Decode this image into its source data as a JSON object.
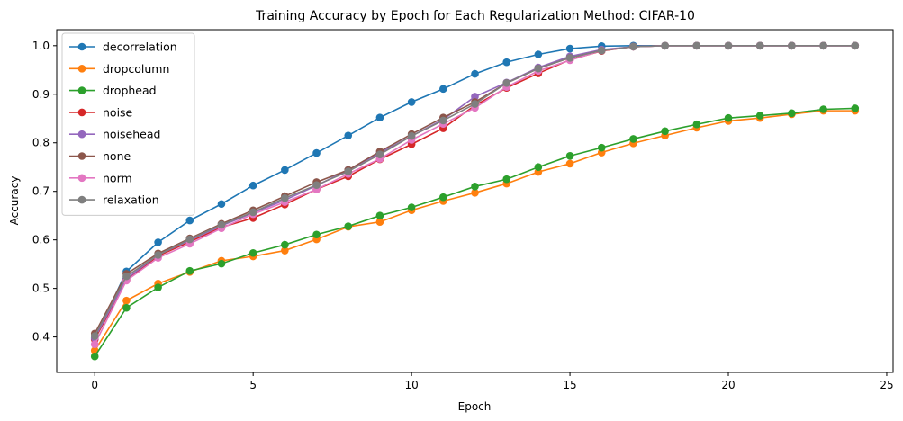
{
  "chart_data": {
    "type": "line",
    "title": "Training Accuracy by Epoch for Each Regularization Method: CIFAR-10",
    "xlabel": "Epoch",
    "ylabel": "Accuracy",
    "xlim": [
      -1.2,
      25.2
    ],
    "ylim": [
      0.327,
      1.033
    ],
    "xticks": [
      0,
      5,
      10,
      15,
      20,
      25
    ],
    "yticks": [
      0.4,
      0.5,
      0.6,
      0.7,
      0.8,
      0.9,
      1.0
    ],
    "ytick_labels": [
      "0.4",
      "0.5",
      "0.6",
      "0.7",
      "0.8",
      "0.9",
      "1.0"
    ],
    "grid": false,
    "legend_position": "top-left",
    "x": [
      0,
      1,
      2,
      3,
      4,
      5,
      6,
      7,
      8,
      9,
      10,
      11,
      12,
      13,
      14,
      15,
      16,
      17,
      18,
      19,
      20,
      21,
      22,
      23,
      24
    ],
    "series": [
      {
        "name": "decorrelation",
        "color": "#1f77b4",
        "values": [
          0.397,
          0.535,
          0.595,
          0.64,
          0.674,
          0.712,
          0.744,
          0.779,
          0.815,
          0.852,
          0.884,
          0.911,
          0.942,
          0.966,
          0.982,
          0.994,
          0.999,
          1.0,
          1.0,
          1.0,
          1.0,
          1.0,
          1.0,
          1.0,
          1.0
        ]
      },
      {
        "name": "dropcolumn",
        "color": "#ff7f0e",
        "values": [
          0.372,
          0.475,
          0.51,
          0.534,
          0.557,
          0.566,
          0.578,
          0.601,
          0.627,
          0.637,
          0.661,
          0.68,
          0.697,
          0.716,
          0.74,
          0.757,
          0.78,
          0.799,
          0.815,
          0.831,
          0.845,
          0.851,
          0.859,
          0.866,
          0.866
        ]
      },
      {
        "name": "drophead",
        "color": "#2ca02c",
        "values": [
          0.36,
          0.46,
          0.502,
          0.536,
          0.551,
          0.573,
          0.59,
          0.611,
          0.628,
          0.65,
          0.667,
          0.688,
          0.71,
          0.725,
          0.75,
          0.773,
          0.79,
          0.808,
          0.824,
          0.838,
          0.851,
          0.856,
          0.861,
          0.869,
          0.871
        ]
      },
      {
        "name": "noise",
        "color": "#d62728",
        "values": [
          0.395,
          0.517,
          0.567,
          0.596,
          0.626,
          0.645,
          0.673,
          0.704,
          0.731,
          0.766,
          0.797,
          0.83,
          0.877,
          0.913,
          0.943,
          0.971,
          0.989,
          0.998,
          1.0,
          1.0,
          1.0,
          1.0,
          1.0,
          1.0,
          1.0
        ]
      },
      {
        "name": "noisehead",
        "color": "#9467bd",
        "values": [
          0.398,
          0.52,
          0.569,
          0.599,
          0.629,
          0.656,
          0.682,
          0.712,
          0.744,
          0.779,
          0.814,
          0.848,
          0.895,
          0.924,
          0.955,
          0.978,
          0.992,
          0.998,
          1.0,
          1.0,
          1.0,
          1.0,
          1.0,
          1.0,
          1.0
        ]
      },
      {
        "name": "none",
        "color": "#8c564b",
        "values": [
          0.407,
          0.53,
          0.572,
          0.603,
          0.633,
          0.661,
          0.69,
          0.719,
          0.744,
          0.782,
          0.818,
          0.852,
          0.884,
          0.923,
          0.953,
          0.975,
          0.99,
          0.998,
          1.0,
          1.0,
          1.0,
          1.0,
          1.0,
          1.0,
          1.0
        ]
      },
      {
        "name": "norm",
        "color": "#e377c2",
        "values": [
          0.385,
          0.516,
          0.563,
          0.592,
          0.624,
          0.653,
          0.678,
          0.704,
          0.736,
          0.767,
          0.806,
          0.839,
          0.872,
          0.915,
          0.948,
          0.97,
          0.99,
          0.998,
          1.0,
          1.0,
          1.0,
          1.0,
          1.0,
          1.0,
          1.0
        ]
      },
      {
        "name": "relaxation",
        "color": "#7f7f7f",
        "values": [
          0.402,
          0.525,
          0.569,
          0.601,
          0.631,
          0.657,
          0.686,
          0.713,
          0.741,
          0.776,
          0.814,
          0.846,
          0.88,
          0.923,
          0.953,
          0.975,
          0.99,
          0.998,
          1.0,
          1.0,
          1.0,
          1.0,
          1.0,
          1.0,
          1.0
        ]
      }
    ]
  }
}
